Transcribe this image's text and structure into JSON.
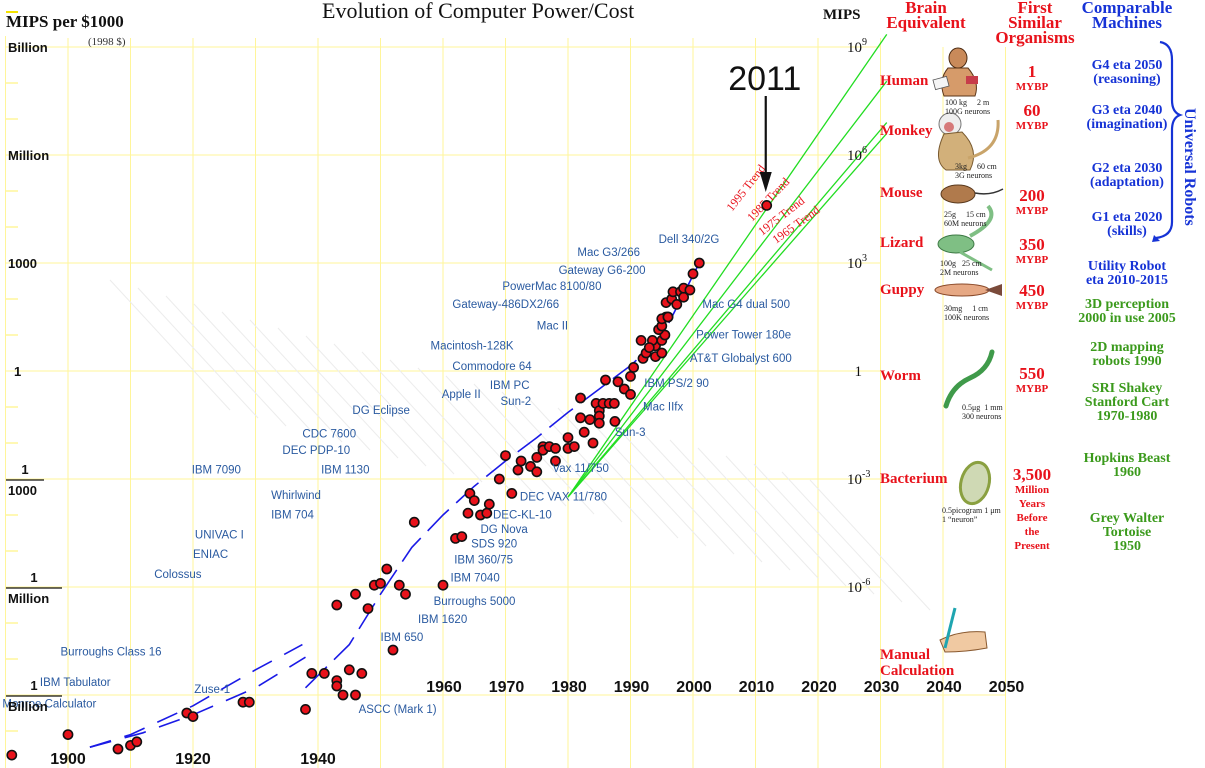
{
  "chart_data": {
    "type": "scatter",
    "title": "Evolution of Computer Power/Cost",
    "ylabel": "MIPS per $1000",
    "ylabel_note": "(1998 $)",
    "ylabel_right": "MIPS",
    "y_scale": "log",
    "ylim_log10": [
      -10.8,
      9.0
    ],
    "xlim": [
      1890,
      2055
    ],
    "grid": true,
    "y_ticks_left": [
      {
        "log10": 9,
        "label": "Billion",
        "frac": false
      },
      {
        "log10": 6,
        "label": "Million",
        "frac": false
      },
      {
        "log10": 3,
        "label": "1000",
        "frac": false
      },
      {
        "log10": 0,
        "label": "1",
        "frac": false
      },
      {
        "log10": -3,
        "label_num": "1",
        "label_den": "1000",
        "frac": true
      },
      {
        "log10": -6,
        "label_num": "1",
        "label_den": "Million",
        "frac": true
      },
      {
        "log10": -9,
        "label_num": "1",
        "label_den": "Billion",
        "frac": true
      }
    ],
    "y_ticks_right": [
      {
        "log10": 9,
        "base": "10",
        "exp": "9"
      },
      {
        "log10": 6,
        "base": "10",
        "exp": "6"
      },
      {
        "log10": 3,
        "base": "10",
        "exp": "3"
      },
      {
        "log10": 0,
        "base": "1",
        "exp": ""
      },
      {
        "log10": -3,
        "base": "10",
        "exp": "-3"
      },
      {
        "log10": -6,
        "base": "10",
        "exp": "-6"
      }
    ],
    "x_ticks_lower": [
      1900,
      1920,
      1940
    ],
    "x_ticks_upper": [
      1960,
      1970,
      1980,
      1990,
      2000,
      2010,
      2020,
      2030,
      2040,
      2050
    ],
    "points": [
      [
        1891.0,
        -10.67
      ],
      [
        1900,
        -10.1
      ],
      [
        1908,
        -10.5
      ],
      [
        1910,
        -10.4
      ],
      [
        1911,
        -10.3
      ],
      [
        1919,
        -9.5
      ],
      [
        1920,
        -9.6
      ],
      [
        1928,
        -9.2
      ],
      [
        1929,
        -9.2
      ],
      [
        1938,
        -9.4
      ],
      [
        1939,
        -8.4
      ],
      [
        1941,
        -8.4
      ],
      [
        1943,
        -8.6
      ],
      [
        1943,
        -8.75
      ],
      [
        1944,
        -9.0
      ],
      [
        1945,
        -8.3
      ],
      [
        1946,
        -9.0
      ],
      [
        1947,
        -8.4
      ],
      [
        1943,
        -6.5
      ],
      [
        1946,
        -6.2
      ],
      [
        1948,
        -6.6
      ],
      [
        1949,
        -5.95
      ],
      [
        1950,
        -5.9
      ],
      [
        1951,
        -5.5
      ],
      [
        1952,
        -7.75
      ],
      [
        1953,
        -5.95
      ],
      [
        1954,
        -6.2
      ],
      [
        1955.4,
        -4.2
      ],
      [
        1960,
        -5.95
      ],
      [
        1962,
        -4.65
      ],
      [
        1963,
        -4.6
      ],
      [
        1964,
        -3.95
      ],
      [
        1964.3,
        -3.4
      ],
      [
        1965,
        -3.6
      ],
      [
        1966,
        -4.0
      ],
      [
        1967,
        -3.95
      ],
      [
        1967.4,
        -3.7
      ],
      [
        1969,
        -3.0
      ],
      [
        1970,
        -2.35
      ],
      [
        1971,
        -3.4
      ],
      [
        1972,
        -2.75
      ],
      [
        1972.5,
        -2.5
      ],
      [
        1974,
        -2.65
      ],
      [
        1975,
        -2.4
      ],
      [
        1975,
        -2.8
      ],
      [
        1976,
        -2.1
      ],
      [
        1976,
        -2.2
      ],
      [
        1977,
        -2.1
      ],
      [
        1978,
        -2.15
      ],
      [
        1978,
        -2.5
      ],
      [
        1980,
        -2.15
      ],
      [
        1980,
        -1.85
      ],
      [
        1981,
        -2.1
      ],
      [
        1982,
        -1.3
      ],
      [
        1982.6,
        -1.7
      ],
      [
        1983.5,
        -1.35
      ],
      [
        1984,
        -2.0
      ],
      [
        1984.5,
        -0.9
      ],
      [
        1985,
        -1.1
      ],
      [
        1985.6,
        -0.9
      ],
      [
        1986.6,
        -0.9
      ],
      [
        1987.4,
        -0.9
      ],
      [
        1985,
        -1.25
      ],
      [
        1985,
        -1.45
      ],
      [
        1987.5,
        -1.4
      ],
      [
        1982,
        -0.75
      ],
      [
        1986,
        -0.25
      ],
      [
        1988,
        -0.3
      ],
      [
        1989,
        -0.5
      ],
      [
        1990,
        -0.15
      ],
      [
        1990.5,
        0.1
      ],
      [
        1990,
        -0.65
      ],
      [
        1992,
        0.35
      ],
      [
        1992.5,
        0.5
      ],
      [
        1994,
        0.7
      ],
      [
        1995,
        0.85
      ],
      [
        1995.5,
        1.0
      ],
      [
        1993.5,
        0.85
      ],
      [
        1993,
        0.65
      ],
      [
        1991.7,
        0.85
      ],
      [
        1994.5,
        1.15
      ],
      [
        1995,
        1.25
      ],
      [
        1995.7,
        1.5
      ],
      [
        1995,
        1.45
      ],
      [
        1995.7,
        1.9
      ],
      [
        1996.6,
        2.0
      ],
      [
        1996.8,
        2.2
      ],
      [
        1998,
        2.2
      ],
      [
        1998.5,
        2.05
      ],
      [
        1998.5,
        2.3
      ],
      [
        1997.4,
        1.85
      ],
      [
        1996,
        1.5
      ],
      [
        1994,
        0.4
      ],
      [
        1995,
        0.5
      ],
      [
        1996,
        1.5
      ],
      [
        1999.5,
        2.25
      ],
      [
        2000,
        2.7
      ],
      [
        2001,
        3.0
      ],
      [
        2011.8,
        4.6
      ]
    ],
    "highlight": {
      "label": "2011",
      "year": 2011.8,
      "log10": 4.6
    },
    "trend_lines": [
      {
        "label": "1995 Trend",
        "from": [
          1980,
          -3.5
        ],
        "to": [
          2031,
          9.35
        ]
      },
      {
        "label": "1985 Trend",
        "from": [
          1980,
          -3.5
        ],
        "to": [
          2031,
          8.05
        ]
      },
      {
        "label": "1975 Trend",
        "from": [
          1980,
          -3.5
        ],
        "to": [
          2031,
          6.9
        ]
      },
      {
        "label": "1965 Trend",
        "from": [
          1980,
          -3.5
        ],
        "to": [
          2031,
          6.6
        ]
      }
    ],
    "fit_curve": [
      [
        1903.5,
        -10.45
      ],
      [
        1912,
        -10.05
      ],
      [
        1920,
        -9.55
      ],
      [
        1930,
        -8.8
      ],
      [
        1938,
        -7.95
      ],
      [
        1938,
        -8.8
      ],
      [
        1945,
        -7.6
      ],
      [
        1950,
        -6.2
      ],
      [
        1955,
        -4.9
      ],
      [
        1960,
        -4.0
      ],
      [
        1965,
        -3.2
      ],
      [
        1970,
        -2.5
      ],
      [
        1975,
        -1.85
      ],
      [
        1980,
        -1.15
      ],
      [
        1985,
        -0.5
      ],
      [
        1990,
        0.15
      ],
      [
        1995,
        0.95
      ],
      [
        2001,
        3.0
      ]
    ],
    "fit_curve_lower": [
      [
        1903.5,
        -10.45
      ],
      [
        1910,
        -10.1
      ],
      [
        1920,
        -9.3
      ],
      [
        1930,
        -8.3
      ],
      [
        1937.5,
        -7.6
      ]
    ],
    "machine_labels": [
      {
        "text": "Dell 340/2G",
        "year": 1994.5,
        "log10": 3.55
      },
      {
        "text": "Mac G3/266",
        "year": 1981.5,
        "log10": 3.2
      },
      {
        "text": "Gateway G6-200",
        "year": 1978.5,
        "log10": 2.7
      },
      {
        "text": "PowerMac 8100/80",
        "year": 1969.5,
        "log10": 2.25
      },
      {
        "text": "Gateway-486DX2/66",
        "year": 1961.5,
        "log10": 1.75
      },
      {
        "text": "Mac II",
        "year": 1975,
        "log10": 1.15
      },
      {
        "text": "Macintosh-128K",
        "year": 1958,
        "log10": 0.6
      },
      {
        "text": "Commodore 64",
        "year": 1961.5,
        "log10": 0.03
      },
      {
        "text": "IBM PC",
        "year": 1967.5,
        "log10": -0.5
      },
      {
        "text": "Sun-2",
        "year": 1969.2,
        "log10": -0.95
      },
      {
        "text": "Apple II",
        "year": 1959.8,
        "log10": -0.75
      },
      {
        "text": "DG Eclipse",
        "year": 1945.5,
        "log10": -1.2
      },
      {
        "text": "CDC 7600",
        "year": 1937.5,
        "log10": -1.85
      },
      {
        "text": "DEC PDP-10",
        "year": 1934.3,
        "log10": -2.3
      },
      {
        "text": "IBM 7090",
        "year": 1919.8,
        "log10": -2.85
      },
      {
        "text": "IBM 1130",
        "year": 1940.5,
        "log10": -2.85
      },
      {
        "text": "Whirlwind",
        "year": 1932.5,
        "log10": -3.55
      },
      {
        "text": "IBM 704",
        "year": 1932.5,
        "log10": -4.1
      },
      {
        "text": "UNIVAC I",
        "year": 1920.3,
        "log10": -4.65
      },
      {
        "text": "ENIAC",
        "year": 1920,
        "log10": -5.2
      },
      {
        "text": "Colossus",
        "year": 1913.8,
        "log10": -5.75
      },
      {
        "text": "Burroughs Class 16",
        "year": 1898.8,
        "log10": -7.9
      },
      {
        "text": "IBM Tabulator",
        "year": 1895.5,
        "log10": -8.75
      },
      {
        "text": "Monroe Calculator",
        "year": 1889.5,
        "log10": -9.35
      },
      {
        "text": "Zuse-1",
        "year": 1920.2,
        "log10": -8.95
      },
      {
        "text": "ASCC (Mark 1)",
        "year": 1946.5,
        "log10": -9.5
      },
      {
        "text": "IBM 650",
        "year": 1950,
        "log10": -7.5
      },
      {
        "text": "IBM 1620",
        "year": 1956,
        "log10": -7.0
      },
      {
        "text": "Burroughs 5000",
        "year": 1958.5,
        "log10": -6.5
      },
      {
        "text": "IBM 7040",
        "year": 1961.2,
        "log10": -5.85
      },
      {
        "text": "IBM 360/75",
        "year": 1961.8,
        "log10": -5.35
      },
      {
        "text": "SDS 920",
        "year": 1964.5,
        "log10": -4.9
      },
      {
        "text": "DG Nova",
        "year": 1966,
        "log10": -4.5
      },
      {
        "text": "DEC-KL-10",
        "year": 1968,
        "log10": -4.1
      },
      {
        "text": "DEC VAX 11/780",
        "year": 1972.3,
        "log10": -3.6
      },
      {
        "text": "Vax 11/750",
        "year": 1977.5,
        "log10": -2.8
      },
      {
        "text": "Sun-3",
        "year": 1987.5,
        "log10": -1.8
      },
      {
        "text": "Mac IIfx",
        "year": 1992,
        "log10": -1.1
      },
      {
        "text": "IBM PS/2 90",
        "year": 1992.2,
        "log10": -0.45
      },
      {
        "text": "AT&T Globalyst 600",
        "year": 1999.5,
        "log10": 0.25
      },
      {
        "text": "Power Tower 180e",
        "year": 2000.5,
        "log10": 0.9
      },
      {
        "text": "Mac G4 dual 500",
        "year": 2001.5,
        "log10": 1.75
      }
    ]
  },
  "brain_column": {
    "header_line1": "Brain",
    "header_line2": "Equivalent",
    "items": [
      {
        "name": "Human",
        "log10": 8.0,
        "stats1": "100 kg     2 m",
        "stats2": "100G neurons"
      },
      {
        "name": "Monkey",
        "log10": 6.6,
        "stats1": "3kg     60 cm",
        "stats2": "3G neurons"
      },
      {
        "name": "Mouse",
        "log10": 4.9,
        "stats1": "25g     15 cm",
        "stats2": "60M neurons"
      },
      {
        "name": "Lizard",
        "log10": 3.5,
        "stats1": "100g   25 cm",
        "stats2": "2M neurons"
      },
      {
        "name": "Guppy",
        "log10": 2.2,
        "stats1": "30mg     1 cm",
        "stats2": "100K neurons"
      },
      {
        "name": "Worm",
        "log10": -0.2,
        "stats1": "0.5μg  1 mm",
        "stats2": "300 neurons"
      },
      {
        "name": "Bacterium",
        "log10": -3.05,
        "stats1": "0.5picogram 1 μm",
        "stats2": "1 “neuron”"
      },
      {
        "name": "Manual",
        "name2": "Calculation",
        "log10": -7.95
      }
    ]
  },
  "organisms_column": {
    "header_line1": "First",
    "header_line2": "Similar",
    "header_line3": "Organisms",
    "items": [
      {
        "value": "1",
        "unit": "MYBP"
      },
      {
        "value": "60",
        "unit": "MYBP"
      },
      {
        "value": "200",
        "unit": "MYBP"
      },
      {
        "value": "350",
        "unit": "MYBP"
      },
      {
        "value": "450",
        "unit": "MYBP"
      },
      {
        "value": "550",
        "unit": "MYBP"
      },
      {
        "value": "3,500",
        "unit_lines": [
          "Million",
          "Years",
          "Before",
          "the",
          "Present"
        ]
      }
    ]
  },
  "machines_column": {
    "header_line1": "Comparable",
    "header_line2": "Machines",
    "brace_label": "Universal Robots",
    "robots": [
      {
        "line1": "G4 eta 2050",
        "line2": "(reasoning)",
        "color": "#1633d6"
      },
      {
        "line1": "G3 eta 2040",
        "line2": "(imagination)",
        "color": "#1633d6"
      },
      {
        "line1": "G2 eta 2030",
        "line2": "(adaptation)",
        "color": "#1633d6"
      },
      {
        "line1": "G1 eta 2020",
        "line2": "(skills)",
        "color": "#1633d6"
      },
      {
        "line1": "Utility Robot",
        "line2": "eta 2010-2015",
        "color": "#1633d6"
      },
      {
        "line1": "3D perception",
        "line2": "2000 in use 2005",
        "color": "#3b9a1c"
      },
      {
        "line1": "2D mapping",
        "line2": "robots 1990",
        "color": "#3b9a1c"
      },
      {
        "line1": "SRI Shakey",
        "line2": "Stanford Cart",
        "line3": "1970-1980",
        "color": "#3b9a1c"
      },
      {
        "line1": "Hopkins Beast",
        "line2": "1960",
        "color": "#3b9a1c"
      },
      {
        "line1": "Grey Walter",
        "line2": "Tortoise",
        "line3": "1950",
        "color": "#3b9a1c"
      }
    ]
  },
  "colors": {
    "grid": "#fff59a",
    "point_fill": "#e8121b",
    "label_blue": "#2a5aa0",
    "trend_green": "#22dd22",
    "fit_blue": "#1a1ae6",
    "trend_label": "#e8121b",
    "accent_red": "#e8121b",
    "accent_blue": "#1633d6",
    "accent_green": "#3b9a1c"
  }
}
